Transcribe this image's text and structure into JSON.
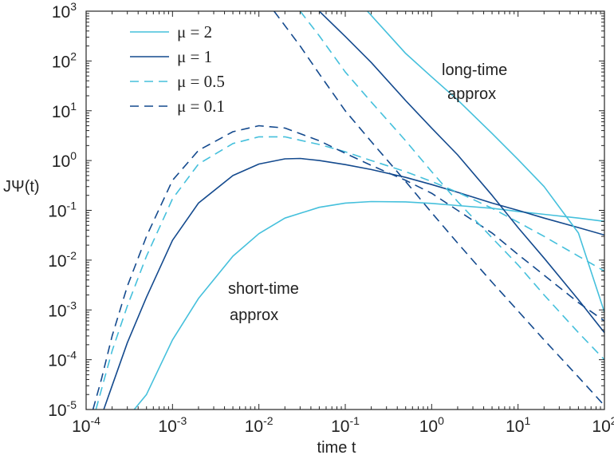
{
  "chart_data": {
    "type": "line",
    "xlabel": "time t",
    "ylabel": "JΨ(t)",
    "xscale": "log",
    "yscale": "log",
    "xlim": [
      0.0001,
      100
    ],
    "ylim": [
      1e-05,
      1000
    ],
    "grid": false,
    "legend_position": "top-left",
    "x_ticks": [
      {
        "base": "10",
        "exp": "-4",
        "value": 0.0001
      },
      {
        "base": "10",
        "exp": "-3",
        "value": 0.001
      },
      {
        "base": "10",
        "exp": "-2",
        "value": 0.01
      },
      {
        "base": "10",
        "exp": "-1",
        "value": 0.1
      },
      {
        "base": "10",
        "exp": "0",
        "value": 1
      },
      {
        "base": "10",
        "exp": "1",
        "value": 10
      },
      {
        "base": "10",
        "exp": "2",
        "value": 100
      }
    ],
    "y_ticks": [
      {
        "base": "10",
        "exp": "-5",
        "value": 1e-05
      },
      {
        "base": "10",
        "exp": "-4",
        "value": 0.0001
      },
      {
        "base": "10",
        "exp": "-3",
        "value": 0.001
      },
      {
        "base": "10",
        "exp": "-2",
        "value": 0.01
      },
      {
        "base": "10",
        "exp": "-1",
        "value": 0.1
      },
      {
        "base": "10",
        "exp": "0",
        "value": 1
      },
      {
        "base": "10",
        "exp": "1",
        "value": 10
      },
      {
        "base": "10",
        "exp": "2",
        "value": 100
      },
      {
        "base": "10",
        "exp": "3",
        "value": 1000
      }
    ],
    "series": [
      {
        "name": "μ = 2",
        "style": "solid",
        "color": "#45c0dc",
        "x": [
          0.00036,
          0.0005,
          0.001,
          0.002,
          0.005,
          0.01,
          0.02,
          0.05,
          0.1,
          0.2,
          0.5,
          1,
          2,
          5,
          10,
          20,
          50,
          100
        ],
        "y": [
          1e-05,
          2e-05,
          0.00025,
          0.0017,
          0.012,
          0.034,
          0.07,
          0.115,
          0.14,
          0.15,
          0.148,
          0.138,
          0.125,
          0.11,
          0.095,
          0.083,
          0.07,
          0.06
        ]
      },
      {
        "name": "μ = 1",
        "style": "solid",
        "color": "#144a8e",
        "x": [
          0.00016,
          0.0002,
          0.0003,
          0.0005,
          0.001,
          0.002,
          0.005,
          0.01,
          0.02,
          0.03,
          0.05,
          0.1,
          0.2,
          0.5,
          1,
          2,
          5,
          10,
          20,
          50,
          100
        ],
        "y": [
          1e-05,
          3e-05,
          0.00022,
          0.0018,
          0.025,
          0.14,
          0.5,
          0.85,
          1.08,
          1.1,
          1.0,
          0.83,
          0.66,
          0.46,
          0.33,
          0.23,
          0.14,
          0.1,
          0.07,
          0.045,
          0.032
        ]
      },
      {
        "name": "μ = 0.5",
        "style": "dashed",
        "color": "#45c0dc",
        "x": [
          0.00013,
          0.0002,
          0.0003,
          0.0005,
          0.001,
          0.002,
          0.005,
          0.01,
          0.02,
          0.05,
          0.1,
          0.2,
          0.5,
          1,
          2,
          5,
          10,
          20,
          50,
          100
        ],
        "y": [
          1e-05,
          0.00015,
          0.0012,
          0.012,
          0.17,
          0.85,
          2.2,
          3.0,
          3.0,
          2.1,
          1.5,
          1.0,
          0.6,
          0.38,
          0.23,
          0.11,
          0.058,
          0.03,
          0.012,
          0.006
        ]
      },
      {
        "name": "μ = 0.1",
        "style": "dashed",
        "color": "#144a8e",
        "x": [
          0.00012,
          0.00015,
          0.0002,
          0.0003,
          0.0005,
          0.001,
          0.002,
          0.005,
          0.01,
          0.02,
          0.05,
          0.1,
          0.2,
          0.5,
          1,
          2,
          5,
          10,
          20,
          50,
          100
        ],
        "y": [
          1e-05,
          4e-05,
          0.0003,
          0.003,
          0.03,
          0.4,
          1.6,
          3.8,
          5.0,
          4.5,
          2.5,
          1.4,
          0.8,
          0.4,
          0.22,
          0.1,
          0.035,
          0.013,
          0.005,
          0.0014,
          0.0006
        ]
      },
      {
        "name": "",
        "style": "solid",
        "color": "#45c0dc",
        "x": [
          0.18,
          0.5,
          1,
          2,
          5,
          10,
          20,
          50,
          100
        ],
        "y": [
          1000,
          142,
          48,
          16.5,
          3.5,
          1.05,
          0.3,
          0.035,
          0.0009
        ]
      },
      {
        "name": "",
        "style": "solid",
        "color": "#144a8e",
        "x": [
          0.05,
          0.1,
          0.2,
          0.5,
          1,
          2,
          5,
          10,
          20,
          50,
          100
        ],
        "y": [
          1000,
          310,
          93,
          16,
          4.5,
          1.3,
          0.2,
          0.045,
          0.011,
          0.0016,
          0.00035
        ]
      },
      {
        "name": "",
        "style": "dashed",
        "color": "#45c0dc",
        "x": [
          0.03,
          0.05,
          0.1,
          0.2,
          0.5,
          1,
          2,
          5,
          10,
          20,
          50,
          100
        ],
        "y": [
          1000,
          320,
          60,
          15,
          2.5,
          0.6,
          0.15,
          0.028,
          0.008,
          0.002,
          0.00035,
          0.0001
        ]
      },
      {
        "name": "",
        "style": "dashed",
        "color": "#144a8e",
        "x": [
          0.015,
          0.03,
          0.05,
          0.1,
          0.2,
          0.5,
          1,
          2,
          5,
          10,
          20,
          50,
          100
        ],
        "y": [
          1000,
          200,
          55,
          10,
          2.4,
          0.38,
          0.09,
          0.022,
          0.0036,
          0.00095,
          0.00025,
          4.5e-05,
          1.2e-05
        ]
      }
    ],
    "legend": [
      {
        "label": "μ = 2",
        "style": "solid",
        "color": "#45c0dc"
      },
      {
        "label": "μ = 1",
        "style": "solid",
        "color": "#144a8e"
      },
      {
        "label": "μ = 0.5",
        "style": "dashed",
        "color": "#45c0dc"
      },
      {
        "label": "μ = 0.1",
        "style": "dashed",
        "color": "#144a8e"
      }
    ],
    "annotations": [
      {
        "lines": [
          "long-time",
          "approx"
        ]
      },
      {
        "lines": [
          "short-time",
          "approx"
        ]
      }
    ]
  }
}
